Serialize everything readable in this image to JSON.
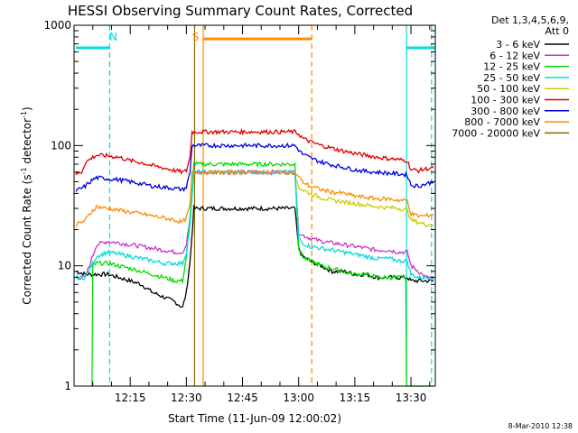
{
  "chart_data": {
    "type": "line",
    "title": "HESSI Observing Summary Count Rates, Corrected",
    "xlabel": "Start Time (11-Jun-09 12:00:02)",
    "ylabel_main": "Corrected Count Rate (s",
    "ylabel_sup1": "-1",
    "ylabel_mid": " detector",
    "ylabel_sup2": "-1",
    "ylabel_end": ")",
    "yscale": "log",
    "ylim": [
      1,
      1000
    ],
    "xlim": [
      0,
      96.5
    ],
    "x_unit": "minutes after 12:00:02",
    "y_ticks": [
      {
        "value": 1,
        "label": "1"
      },
      {
        "value": 10,
        "label": "10"
      },
      {
        "value": 100,
        "label": "100"
      },
      {
        "value": 1000,
        "label": "1000"
      }
    ],
    "x_ticks": [
      {
        "value": 15,
        "label": "12:15"
      },
      {
        "value": 30,
        "label": "12:30"
      },
      {
        "value": 45,
        "label": "12:45"
      },
      {
        "value": 60,
        "label": "13:00"
      },
      {
        "value": 75,
        "label": "13:15"
      },
      {
        "value": 90,
        "label": "13:30"
      }
    ],
    "legend_header_1": "Det 1,3,4,5,6,9,",
    "legend_header_2": "Att 0",
    "legend_position": "outside-right",
    "series": [
      {
        "name": "3 - 6 keV",
        "color": "#000000",
        "x": [
          0.5,
          3,
          6,
          9,
          12,
          15,
          18,
          21,
          24,
          27,
          29,
          30,
          31,
          32,
          59,
          60,
          61,
          63,
          66,
          69,
          72,
          75,
          78,
          81,
          84,
          87,
          89,
          90,
          92,
          94,
          96
        ],
        "y": [
          9,
          8.5,
          8.5,
          8.5,
          8,
          7.5,
          7,
          6,
          5.5,
          5,
          4.5,
          6,
          11,
          30,
          30,
          14,
          12,
          11,
          10,
          9,
          9,
          8.5,
          8.5,
          8,
          8,
          8,
          8,
          7.5,
          7.5,
          7.5,
          7.5
        ]
      },
      {
        "name": "6 - 12 keV",
        "color": "#cc33cc",
        "x": [
          0.5,
          3,
          6,
          9,
          12,
          15,
          18,
          21,
          24,
          27,
          29,
          30,
          31,
          32,
          59,
          60,
          61,
          63,
          66,
          69,
          72,
          75,
          78,
          81,
          84,
          87,
          89,
          90,
          92,
          94,
          96
        ],
        "y": [
          8,
          8,
          15,
          16,
          15.5,
          15,
          14.5,
          14,
          13.5,
          13,
          13,
          15,
          25,
          60,
          60,
          19,
          18,
          17,
          16,
          15.5,
          15,
          14.5,
          14,
          13.5,
          13.5,
          13,
          13,
          10,
          9,
          8,
          8
        ]
      },
      {
        "name": "12 - 25 keV",
        "color": "#00dd00",
        "x": [
          4.8,
          5,
          6,
          9,
          12,
          15,
          18,
          21,
          24,
          27,
          29,
          30,
          31,
          32,
          59,
          60,
          61,
          63,
          66,
          69,
          72,
          75,
          78,
          81,
          84,
          87,
          88.6,
          88.8,
          90,
          92,
          94,
          96
        ],
        "y": [
          1,
          10,
          10.5,
          10.5,
          10,
          9.5,
          9,
          8.5,
          8,
          7.5,
          7.5,
          12,
          25,
          70,
          70,
          14,
          12,
          11,
          10,
          9.5,
          9,
          8.5,
          8.5,
          8,
          8,
          8,
          8,
          1,
          1,
          1,
          1,
          1
        ]
      },
      {
        "name": "25 - 50 keV",
        "color": "#00dddd",
        "x": [
          0.5,
          3,
          6,
          9,
          12,
          15,
          18,
          21,
          24,
          27,
          29,
          30,
          31,
          32,
          59,
          60,
          61,
          63,
          66,
          69,
          72,
          75,
          78,
          81,
          84,
          87,
          89,
          90,
          92,
          94,
          96
        ],
        "y": [
          8,
          8,
          12,
          13,
          12.5,
          12,
          11.5,
          11,
          10.5,
          10.5,
          10.5,
          13,
          22,
          60,
          60,
          17,
          15.5,
          14.5,
          14,
          13.5,
          13,
          12.5,
          12,
          11.5,
          11.5,
          11,
          11,
          8.5,
          8,
          8,
          8
        ]
      },
      {
        "name": "50 - 100 keV",
        "color": "#cccc00",
        "x": [
          59.5,
          60,
          61,
          63,
          66,
          69,
          72,
          75,
          78,
          81,
          84,
          87,
          89,
          90,
          92,
          94,
          96
        ],
        "y": [
          50,
          45,
          43,
          40,
          37,
          35,
          34,
          33,
          32,
          31,
          30.5,
          30,
          29,
          24,
          23,
          22,
          22
        ]
      },
      {
        "name": "100 - 300 keV",
        "color": "#dd0000",
        "x": [
          0.5,
          2,
          3,
          5,
          6,
          9,
          12,
          15,
          18,
          21,
          24,
          27,
          29,
          30,
          31,
          31.5,
          59,
          60,
          61,
          63,
          66,
          69,
          72,
          75,
          78,
          81,
          84,
          87,
          89,
          90,
          92,
          94,
          96
        ],
        "y": [
          58,
          60,
          72,
          80,
          83,
          82,
          80,
          75,
          72,
          68,
          65,
          62,
          60,
          62,
          80,
          130,
          130,
          125,
          115,
          108,
          100,
          95,
          90,
          86,
          83,
          80,
          78,
          76,
          75,
          63,
          62,
          64,
          65
        ]
      },
      {
        "name": "300 - 800 keV",
        "color": "#0000dd",
        "x": [
          0.5,
          2,
          3,
          5,
          6,
          9,
          12,
          15,
          18,
          21,
          24,
          27,
          29,
          30,
          31,
          31.5,
          59,
          60,
          61,
          63,
          66,
          69,
          72,
          75,
          78,
          81,
          84,
          87,
          89,
          90,
          92,
          94,
          96
        ],
        "y": [
          42,
          44,
          46,
          52,
          54,
          53,
          52,
          50,
          48,
          46,
          45,
          44,
          43,
          45,
          60,
          100,
          100,
          92,
          85,
          79,
          73,
          69,
          66,
          63,
          61,
          60,
          59,
          58,
          57,
          47,
          46,
          48,
          50
        ]
      },
      {
        "name": "800 - 7000 keV",
        "color": "#ff8c00",
        "x": [
          0.5,
          2,
          3,
          5,
          6,
          9,
          12,
          15,
          18,
          21,
          24,
          27,
          29,
          30,
          31,
          31.5,
          59,
          60,
          61,
          63,
          66,
          69,
          72,
          75,
          78,
          81,
          84,
          87,
          89,
          90,
          92,
          94,
          96
        ],
        "y": [
          22,
          23,
          24,
          29,
          31,
          30,
          29,
          28,
          27,
          26,
          25,
          24,
          23,
          25,
          32,
          60,
          60,
          55,
          50,
          46,
          43,
          41,
          40,
          38,
          37,
          36,
          36,
          35,
          35,
          27,
          26,
          26,
          27
        ]
      },
      {
        "name": "7000 - 20000 keV",
        "color": "#886600",
        "x": [],
        "y": []
      }
    ],
    "attenuator_states": [
      {
        "x": 0.5,
        "x_end": 9.5,
        "level": 650,
        "color": "#00dddd",
        "label": ""
      },
      {
        "x": 88.8,
        "x_end": 96.5,
        "level": 650,
        "color": "#00dddd",
        "label": ""
      },
      {
        "x": 34.5,
        "x_end": 63.5,
        "level": 770,
        "color": "#ff8c00",
        "label": ""
      }
    ],
    "markers": [
      {
        "label": "N",
        "x": 10.5,
        "color": "#00dddd"
      },
      {
        "label": "S",
        "x": 32.5,
        "color": "#ff8c00"
      }
    ],
    "vertical_lines": [
      {
        "x": 9.5,
        "color": "#00dddd",
        "style": "dashed"
      },
      {
        "x": 88.8,
        "color": "#00dddd",
        "style": "solid"
      },
      {
        "x": 95.5,
        "color": "#00dddd",
        "style": "dashed"
      },
      {
        "x": 32.2,
        "color": "#886600",
        "style": "solid"
      },
      {
        "x": 34.5,
        "color": "#ff8c00",
        "style": "solid"
      },
      {
        "x": 63.5,
        "color": "#ff8c00",
        "style": "dashed"
      }
    ],
    "footer_stamp": "8-Mar-2010 12:38"
  }
}
